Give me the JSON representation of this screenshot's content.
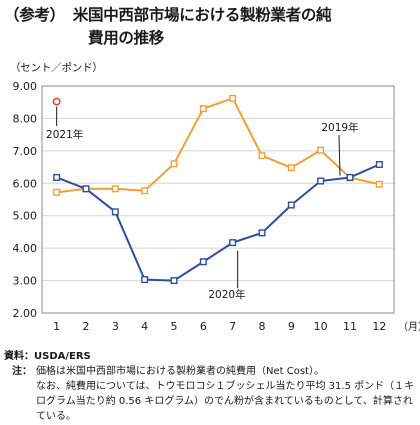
{
  "title": {
    "prefix": "（参考）",
    "line1": "米国中西部市場における製粉業者の純",
    "line2": "費用の推移"
  },
  "notes": {
    "source": "資料：USDA/ERS",
    "note_label": "注：",
    "note_line1": "価格は米国中西部市場における製粉業者の純費用（Net Cost）。",
    "note_rest": "なお、純費用については、トウモロコシ１ブッシェル当たり平均 31.5 ポンド（１キログラム当たり約 0.56 キログラム）のでん粉が含まれているものとして、計算されている。"
  },
  "chart_data": {
    "type": "line",
    "ylabel": "（セント／ポンド）",
    "xunit": "（月）",
    "categories": [
      "1",
      "2",
      "3",
      "4",
      "5",
      "6",
      "7",
      "8",
      "9",
      "10",
      "11",
      "12"
    ],
    "ylim": [
      2.0,
      9.0
    ],
    "yticks": [
      "2.00",
      "3.00",
      "4.00",
      "5.00",
      "6.00",
      "7.00",
      "8.00",
      "9.00"
    ],
    "grid": true,
    "series": [
      {
        "name": "2019年",
        "color": "#f0a032",
        "values": [
          5.72,
          5.83,
          5.83,
          5.77,
          6.6,
          8.3,
          8.62,
          6.85,
          6.48,
          7.02,
          6.17,
          5.97
        ]
      },
      {
        "name": "2020年",
        "color": "#2d4e9a",
        "values": [
          6.18,
          5.83,
          5.12,
          3.03,
          3.0,
          3.58,
          4.17,
          4.47,
          5.33,
          6.07,
          6.18,
          6.58
        ]
      },
      {
        "name": "2021年",
        "color": "#e0423c",
        "values": [
          8.52,
          null,
          null,
          null,
          null,
          null,
          null,
          null,
          null,
          null,
          null,
          null
        ]
      }
    ]
  }
}
